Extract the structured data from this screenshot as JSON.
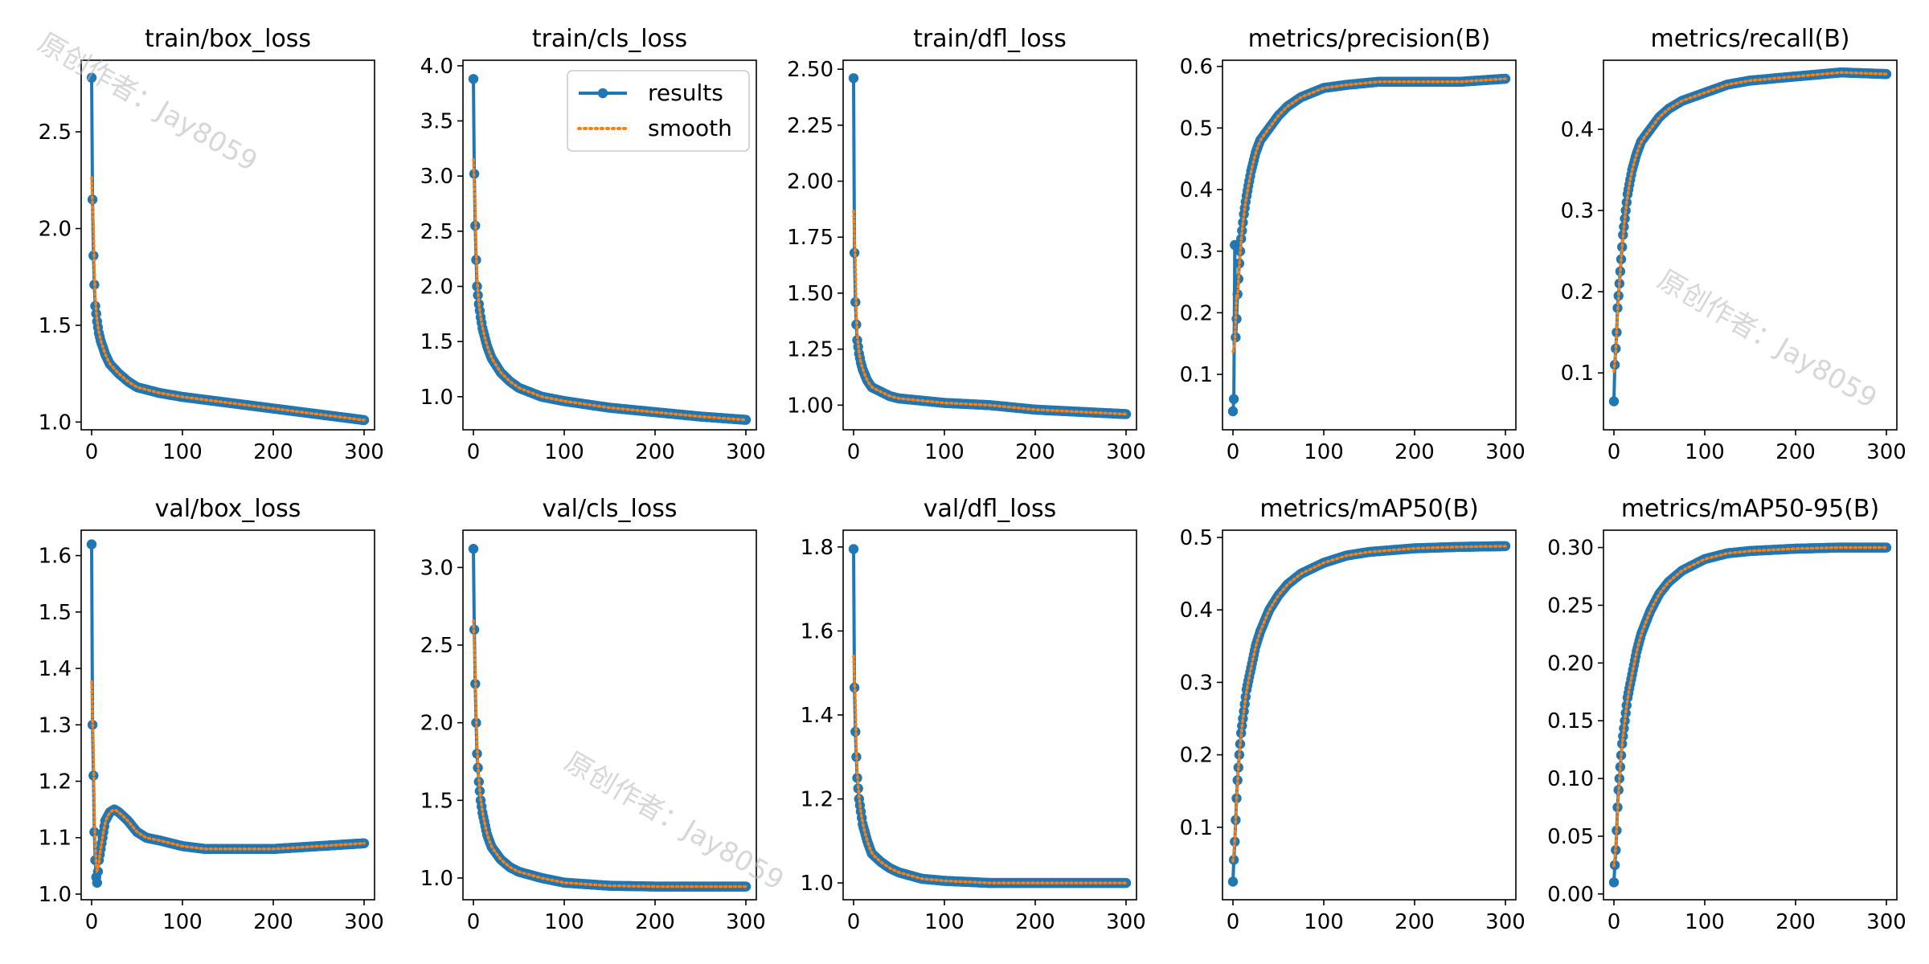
{
  "legend": {
    "results_label": "results",
    "smooth_label": "smooth",
    "results_color": "#1f77b4",
    "smooth_color": "#ff7f0e"
  },
  "watermarks": [
    "原创作者：Jay8059",
    "原创作者：Jay8059",
    "原创作者：Jay8059"
  ],
  "chart_data": [
    {
      "type": "line",
      "title": "train/box_loss",
      "xlim": [
        0,
        300
      ],
      "ylim": [
        0.96,
        2.87
      ],
      "xticks": [
        0,
        100,
        200,
        300
      ],
      "yticks": [
        1.0,
        1.5,
        2.0,
        2.5
      ],
      "ytick_labels": [
        "1.0",
        "1.5",
        "2.0",
        "2.5"
      ],
      "points": [
        [
          0,
          2.78
        ],
        [
          1,
          2.15
        ],
        [
          2,
          1.86
        ],
        [
          3,
          1.71
        ],
        [
          4,
          1.6
        ],
        [
          6,
          1.52
        ],
        [
          8,
          1.46
        ],
        [
          10,
          1.42
        ],
        [
          15,
          1.35
        ],
        [
          20,
          1.3
        ],
        [
          30,
          1.25
        ],
        [
          40,
          1.21
        ],
        [
          50,
          1.18
        ],
        [
          75,
          1.15
        ],
        [
          100,
          1.13
        ],
        [
          150,
          1.1
        ],
        [
          200,
          1.07
        ],
        [
          250,
          1.04
        ],
        [
          300,
          1.01
        ]
      ]
    },
    {
      "type": "line",
      "title": "train/cls_loss",
      "xlim": [
        0,
        300
      ],
      "ylim": [
        0.7,
        4.05
      ],
      "xticks": [
        0,
        100,
        200,
        300
      ],
      "yticks": [
        1.0,
        1.5,
        2.0,
        2.5,
        3.0,
        3.5,
        4.0
      ],
      "ytick_labels": [
        "1.0",
        "1.5",
        "2.0",
        "2.5",
        "3.0",
        "3.5",
        "4.0"
      ],
      "legend_position": "top-right",
      "points": [
        [
          0,
          3.88
        ],
        [
          1,
          3.02
        ],
        [
          2,
          2.55
        ],
        [
          3,
          2.24
        ],
        [
          4,
          2.0
        ],
        [
          6,
          1.84
        ],
        [
          8,
          1.72
        ],
        [
          10,
          1.62
        ],
        [
          15,
          1.46
        ],
        [
          20,
          1.35
        ],
        [
          30,
          1.22
        ],
        [
          40,
          1.14
        ],
        [
          50,
          1.08
        ],
        [
          75,
          1.0
        ],
        [
          100,
          0.96
        ],
        [
          150,
          0.9
        ],
        [
          200,
          0.86
        ],
        [
          250,
          0.82
        ],
        [
          300,
          0.79
        ]
      ]
    },
    {
      "type": "line",
      "title": "train/dfl_loss",
      "xlim": [
        0,
        300
      ],
      "ylim": [
        0.89,
        2.54
      ],
      "xticks": [
        0,
        100,
        200,
        300
      ],
      "yticks": [
        1.0,
        1.25,
        1.5,
        1.75,
        2.0,
        2.25,
        2.5
      ],
      "ytick_labels": [
        "1.00",
        "1.25",
        "1.50",
        "1.75",
        "2.00",
        "2.25",
        "2.50"
      ],
      "points": [
        [
          0,
          2.46
        ],
        [
          1,
          1.68
        ],
        [
          2,
          1.46
        ],
        [
          3,
          1.36
        ],
        [
          4,
          1.29
        ],
        [
          6,
          1.23
        ],
        [
          8,
          1.19
        ],
        [
          10,
          1.16
        ],
        [
          15,
          1.11
        ],
        [
          20,
          1.08
        ],
        [
          30,
          1.06
        ],
        [
          40,
          1.04
        ],
        [
          50,
          1.03
        ],
        [
          75,
          1.02
        ],
        [
          100,
          1.01
        ],
        [
          150,
          1.0
        ],
        [
          200,
          0.98
        ],
        [
          250,
          0.97
        ],
        [
          300,
          0.96
        ]
      ]
    },
    {
      "type": "line",
      "title": "metrics/precision(B)",
      "xlim": [
        0,
        300
      ],
      "ylim": [
        0.01,
        0.61
      ],
      "xticks": [
        0,
        100,
        200,
        300
      ],
      "yticks": [
        0.1,
        0.2,
        0.3,
        0.4,
        0.5,
        0.6
      ],
      "ytick_labels": [
        "0.1",
        "0.2",
        "0.3",
        "0.4",
        "0.5",
        "0.6"
      ],
      "points": [
        [
          0,
          0.04
        ],
        [
          1,
          0.06
        ],
        [
          2,
          0.31
        ],
        [
          3,
          0.16
        ],
        [
          4,
          0.19
        ],
        [
          5,
          0.23
        ],
        [
          7,
          0.28
        ],
        [
          9,
          0.32
        ],
        [
          12,
          0.36
        ],
        [
          15,
          0.39
        ],
        [
          20,
          0.43
        ],
        [
          25,
          0.46
        ],
        [
          30,
          0.48
        ],
        [
          40,
          0.5
        ],
        [
          50,
          0.52
        ],
        [
          60,
          0.535
        ],
        [
          75,
          0.55
        ],
        [
          100,
          0.565
        ],
        [
          125,
          0.57
        ],
        [
          160,
          0.575
        ],
        [
          200,
          0.575
        ],
        [
          250,
          0.575
        ],
        [
          300,
          0.58
        ]
      ]
    },
    {
      "type": "line",
      "title": "metrics/recall(B)",
      "xlim": [
        0,
        300
      ],
      "ylim": [
        0.03,
        0.485
      ],
      "xticks": [
        0,
        100,
        200,
        300
      ],
      "yticks": [
        0.1,
        0.2,
        0.3,
        0.4
      ],
      "ytick_labels": [
        "0.1",
        "0.2",
        "0.3",
        "0.4"
      ],
      "points": [
        [
          0,
          0.065
        ],
        [
          1,
          0.11
        ],
        [
          2,
          0.13
        ],
        [
          3,
          0.15
        ],
        [
          4,
          0.18
        ],
        [
          6,
          0.21
        ],
        [
          8,
          0.24
        ],
        [
          10,
          0.27
        ],
        [
          12,
          0.29
        ],
        [
          15,
          0.32
        ],
        [
          20,
          0.35
        ],
        [
          25,
          0.37
        ],
        [
          30,
          0.385
        ],
        [
          40,
          0.4
        ],
        [
          50,
          0.415
        ],
        [
          60,
          0.425
        ],
        [
          75,
          0.435
        ],
        [
          100,
          0.445
        ],
        [
          125,
          0.455
        ],
        [
          150,
          0.46
        ],
        [
          200,
          0.465
        ],
        [
          250,
          0.47
        ],
        [
          300,
          0.468
        ]
      ]
    },
    {
      "type": "line",
      "title": "val/box_loss",
      "xlim": [
        0,
        300
      ],
      "ylim": [
        0.99,
        1.645
      ],
      "xticks": [
        0,
        100,
        200,
        300
      ],
      "yticks": [
        1.0,
        1.1,
        1.2,
        1.3,
        1.4,
        1.5,
        1.6
      ],
      "ytick_labels": [
        "1.0",
        "1.1",
        "1.2",
        "1.3",
        "1.4",
        "1.5",
        "1.6"
      ],
      "points": [
        [
          0,
          1.62
        ],
        [
          1,
          1.3
        ],
        [
          2,
          1.21
        ],
        [
          3,
          1.11
        ],
        [
          4,
          1.06
        ],
        [
          5,
          1.03
        ],
        [
          6,
          1.02
        ],
        [
          7,
          1.04
        ],
        [
          8,
          1.06
        ],
        [
          10,
          1.08
        ],
        [
          12,
          1.1
        ],
        [
          15,
          1.13
        ],
        [
          20,
          1.145
        ],
        [
          25,
          1.15
        ],
        [
          30,
          1.145
        ],
        [
          40,
          1.13
        ],
        [
          50,
          1.11
        ],
        [
          60,
          1.1
        ],
        [
          75,
          1.095
        ],
        [
          100,
          1.085
        ],
        [
          125,
          1.08
        ],
        [
          150,
          1.08
        ],
        [
          200,
          1.08
        ],
        [
          250,
          1.085
        ],
        [
          300,
          1.09
        ]
      ]
    },
    {
      "type": "line",
      "title": "val/cls_loss",
      "xlim": [
        0,
        300
      ],
      "ylim": [
        0.86,
        3.24
      ],
      "xticks": [
        0,
        100,
        200,
        300
      ],
      "yticks": [
        1.0,
        1.5,
        2.0,
        2.5,
        3.0
      ],
      "ytick_labels": [
        "1.0",
        "1.5",
        "2.0",
        "2.5",
        "3.0"
      ],
      "points": [
        [
          0,
          3.12
        ],
        [
          1,
          2.6
        ],
        [
          2,
          2.25
        ],
        [
          3,
          2.0
        ],
        [
          4,
          1.8
        ],
        [
          6,
          1.62
        ],
        [
          8,
          1.5
        ],
        [
          10,
          1.42
        ],
        [
          15,
          1.28
        ],
        [
          20,
          1.2
        ],
        [
          30,
          1.12
        ],
        [
          40,
          1.07
        ],
        [
          50,
          1.04
        ],
        [
          75,
          1.0
        ],
        [
          100,
          0.97
        ],
        [
          150,
          0.95
        ],
        [
          200,
          0.945
        ],
        [
          250,
          0.945
        ],
        [
          300,
          0.945
        ]
      ]
    },
    {
      "type": "line",
      "title": "val/dfl_loss",
      "xlim": [
        0,
        300
      ],
      "ylim": [
        0.96,
        1.84
      ],
      "xticks": [
        0,
        100,
        200,
        300
      ],
      "yticks": [
        1.0,
        1.2,
        1.4,
        1.6,
        1.8
      ],
      "ytick_labels": [
        "1.0",
        "1.2",
        "1.4",
        "1.6",
        "1.8"
      ],
      "points": [
        [
          0,
          1.795
        ],
        [
          1,
          1.465
        ],
        [
          2,
          1.36
        ],
        [
          3,
          1.3
        ],
        [
          4,
          1.25
        ],
        [
          6,
          1.2
        ],
        [
          8,
          1.17
        ],
        [
          10,
          1.14
        ],
        [
          15,
          1.1
        ],
        [
          20,
          1.07
        ],
        [
          30,
          1.05
        ],
        [
          40,
          1.035
        ],
        [
          50,
          1.025
        ],
        [
          75,
          1.01
        ],
        [
          100,
          1.005
        ],
        [
          150,
          1.0
        ],
        [
          200,
          1.0
        ],
        [
          250,
          1.0
        ],
        [
          300,
          1.0
        ]
      ]
    },
    {
      "type": "line",
      "title": "metrics/mAP50(B)",
      "xlim": [
        0,
        300
      ],
      "ylim": [
        0.0,
        0.51
      ],
      "xticks": [
        0,
        100,
        200,
        300
      ],
      "yticks": [
        0.1,
        0.2,
        0.3,
        0.4,
        0.5
      ],
      "ytick_labels": [
        "0.1",
        "0.2",
        "0.3",
        "0.4",
        "0.5"
      ],
      "points": [
        [
          0,
          0.025
        ],
        [
          1,
          0.055
        ],
        [
          2,
          0.08
        ],
        [
          3,
          0.11
        ],
        [
          4,
          0.14
        ],
        [
          5,
          0.165
        ],
        [
          7,
          0.2
        ],
        [
          9,
          0.23
        ],
        [
          12,
          0.26
        ],
        [
          15,
          0.29
        ],
        [
          20,
          0.32
        ],
        [
          25,
          0.35
        ],
        [
          30,
          0.37
        ],
        [
          40,
          0.4
        ],
        [
          50,
          0.42
        ],
        [
          60,
          0.435
        ],
        [
          75,
          0.45
        ],
        [
          100,
          0.465
        ],
        [
          125,
          0.475
        ],
        [
          150,
          0.48
        ],
        [
          200,
          0.485
        ],
        [
          250,
          0.487
        ],
        [
          300,
          0.488
        ]
      ]
    },
    {
      "type": "line",
      "title": "metrics/mAP50-95(B)",
      "xlim": [
        0,
        300
      ],
      "ylim": [
        -0.005,
        0.315
      ],
      "xticks": [
        0,
        100,
        200,
        300
      ],
      "yticks": [
        0.0,
        0.05,
        0.1,
        0.15,
        0.2,
        0.25,
        0.3
      ],
      "ytick_labels": [
        "0.00",
        "0.05",
        "0.10",
        "0.15",
        "0.20",
        "0.25",
        "0.30"
      ],
      "points": [
        [
          0,
          0.01
        ],
        [
          1,
          0.025
        ],
        [
          2,
          0.038
        ],
        [
          3,
          0.055
        ],
        [
          4,
          0.075
        ],
        [
          5,
          0.09
        ],
        [
          7,
          0.11
        ],
        [
          9,
          0.13
        ],
        [
          12,
          0.15
        ],
        [
          15,
          0.17
        ],
        [
          20,
          0.19
        ],
        [
          25,
          0.21
        ],
        [
          30,
          0.225
        ],
        [
          40,
          0.245
        ],
        [
          50,
          0.26
        ],
        [
          60,
          0.27
        ],
        [
          75,
          0.28
        ],
        [
          100,
          0.29
        ],
        [
          125,
          0.295
        ],
        [
          150,
          0.297
        ],
        [
          200,
          0.299
        ],
        [
          250,
          0.3
        ],
        [
          300,
          0.3
        ]
      ]
    }
  ]
}
